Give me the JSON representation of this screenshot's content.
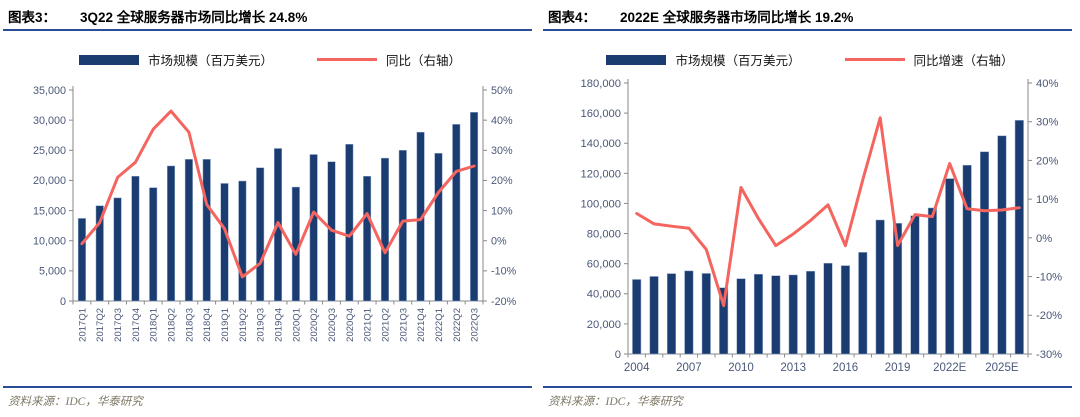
{
  "colors": {
    "bar": "#1A3C70",
    "line": "#F4655F",
    "rule": "#2B4C97",
    "axis": "#8A8A8A",
    "axis_text": "#4A5878",
    "source_text": "#7D7865"
  },
  "chart_data": [
    {
      "type": "combo",
      "figure_label": "图表3：",
      "title": "3Q22 全球服务器市场同比增长 24.8%",
      "legend_position": "top",
      "categories": [
        "2017Q1",
        "2017Q2",
        "2017Q3",
        "2017Q4",
        "2018Q1",
        "2018Q2",
        "2018Q3",
        "2018Q4",
        "2019Q1",
        "2019Q2",
        "2019Q3",
        "2019Q4",
        "2020Q1",
        "2020Q2",
        "2020Q3",
        "2020Q4",
        "2021Q1",
        "2021Q2",
        "2021Q3",
        "2021Q4",
        "2022Q1",
        "2022Q2",
        "2022Q3"
      ],
      "series": [
        {
          "name": "市场规模（百万美元）",
          "type": "bar",
          "axis": "left",
          "values": [
            13700,
            15800,
            17100,
            20700,
            18800,
            22400,
            23500,
            23500,
            19500,
            19900,
            22100,
            25300,
            18900,
            24300,
            23100,
            26000,
            20700,
            23700,
            25000,
            28000,
            24500,
            29300,
            31300
          ]
        },
        {
          "name": "同比（右轴）",
          "type": "line",
          "axis": "right",
          "values": [
            -1,
            6,
            21,
            26,
            37,
            43,
            36,
            12,
            4,
            -12,
            -7.5,
            6,
            -4.5,
            9.5,
            3.5,
            1.5,
            9,
            -4,
            6.5,
            7,
            16,
            23,
            24.8
          ]
        }
      ],
      "y_left": {
        "min": 0,
        "max": 35000,
        "step": 5000
      },
      "y_right": {
        "min": -20,
        "max": 50,
        "step": 10,
        "suffix": "%"
      },
      "x_tick_every": 1,
      "legend": [
        {
          "swatch": "bar",
          "label": "市场规模（百万美元）"
        },
        {
          "swatch": "line",
          "label": "同比（右轴）"
        }
      ],
      "source": "资料来源：IDC，华泰研究"
    },
    {
      "type": "combo",
      "figure_label": "图表4：",
      "title": "2022E 全球服务器市场同比增长 19.2%",
      "legend_position": "top",
      "categories": [
        "2004",
        "2005",
        "2006",
        "2007",
        "2008",
        "2009",
        "2010",
        "2011",
        "2012",
        "2013",
        "2014",
        "2015",
        "2016",
        "2017",
        "2018",
        "2019",
        "2020",
        "2021",
        "2022E",
        "2023E",
        "2024E",
        "2025E",
        "2026E"
      ],
      "series": [
        {
          "name": "市场规模（百万美元）",
          "type": "bar",
          "axis": "left",
          "values": [
            49500,
            51500,
            53400,
            55200,
            53500,
            44000,
            50000,
            53000,
            52000,
            52500,
            55000,
            60300,
            58700,
            67500,
            89000,
            86800,
            91800,
            97000,
            116500,
            125400,
            134300,
            144900,
            155200
          ]
        },
        {
          "name": "同比增速（右轴）",
          "type": "line",
          "axis": "right",
          "values": [
            6.3,
            3.6,
            3,
            2.5,
            -3,
            -17.5,
            13,
            5,
            -2,
            1,
            4.5,
            8.5,
            -2,
            15,
            31,
            -2,
            6,
            5.5,
            19.2,
            7.5,
            7,
            7.2,
            7.8
          ]
        }
      ],
      "y_left": {
        "min": 0,
        "max": 180000,
        "step": 20000
      },
      "y_right": {
        "min": -30,
        "max": 40,
        "step": 10,
        "suffix": "%"
      },
      "x_tick_every": 3,
      "legend": [
        {
          "swatch": "bar",
          "label": "市场规模（百万美元）"
        },
        {
          "swatch": "line",
          "label": "同比增速（右轴）"
        }
      ],
      "source": "资料来源：IDC，华泰研究"
    }
  ]
}
